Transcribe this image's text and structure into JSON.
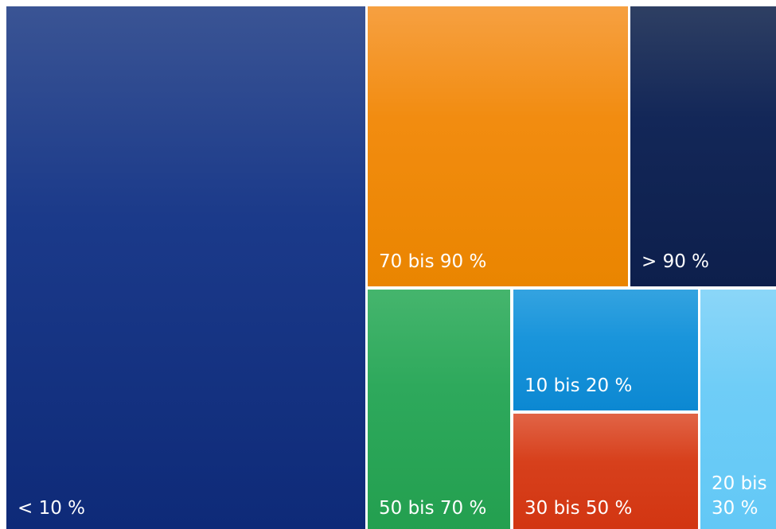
{
  "chart_data": {
    "type": "treemap",
    "title": "",
    "items": [
      {
        "label": "< 10 %",
        "lines": [
          "< 10 %"
        ],
        "color": "#1b3a8a",
        "color_light": "#3a5494",
        "color_dark": "#0e2a78"
      },
      {
        "label": "70 bis 90 %",
        "lines": [
          "70 bis 90 %"
        ],
        "color": "#f28c10",
        "color_light": "#f6a041",
        "color_dark": "#ea8500"
      },
      {
        "label": "> 90 %",
        "lines": [
          "> 90 %"
        ],
        "color": "#132758",
        "color_light": "#2e3f63",
        "color_dark": "#0d1f4c"
      },
      {
        "label": "50 bis 70 %",
        "lines": [
          "50 bis 70 %"
        ],
        "color": "#2ea95c",
        "color_light": "#45b56d",
        "color_dark": "#239f4f"
      },
      {
        "label": "10 bis 20 %",
        "lines": [
          "10 bis 20 %"
        ],
        "color": "#1a95db",
        "color_light": "#34a3e0",
        "color_dark": "#0c88d2"
      },
      {
        "label": "30 bis 50 %",
        "lines": [
          "30 bis 50 %"
        ],
        "color": "#d7401c",
        "color_light": "#e16446",
        "color_dark": "#d23511"
      },
      {
        "label": "20 bis 30 %",
        "lines": [
          "20 bis",
          "30 %"
        ],
        "color": "#6fcdf7",
        "color_light": "#8bd6f8",
        "color_dark": "#62c8f6"
      }
    ]
  }
}
